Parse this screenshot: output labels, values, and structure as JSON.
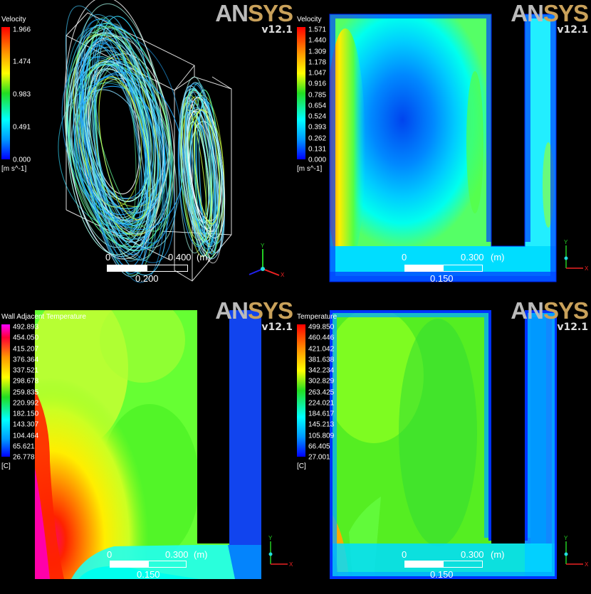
{
  "logo": {
    "name_left": "AN",
    "name_right": "SYS",
    "version": "v12.1"
  },
  "panels": [
    {
      "id": "velocity-streamlines",
      "legend_title": "Velocity",
      "ticks": [
        "1.966",
        "1.474",
        "0.983",
        "0.491",
        "0.000"
      ],
      "unit": "[m s^-1]",
      "scale": {
        "zero": "0",
        "max": "0.400",
        "unit": "(m)",
        "mid": "0.200"
      },
      "axes": {
        "y": "Y",
        "x": "X"
      }
    },
    {
      "id": "velocity-contour",
      "legend_title": "Velocity",
      "ticks": [
        "1.571",
        "1.440",
        "1.309",
        "1.178",
        "1.047",
        "0.916",
        "0.785",
        "0.654",
        "0.524",
        "0.393",
        "0.262",
        "0.131",
        "0.000"
      ],
      "unit": "[m s^-1]",
      "scale": {
        "zero": "0",
        "max": "0.300",
        "unit": "(m)",
        "mid": "0.150"
      },
      "axes": {
        "y": "Y",
        "x": "X"
      }
    },
    {
      "id": "wall-adjacent-temperature",
      "legend_title": "Wall Adjacent Temperature",
      "ticks": [
        "492.893",
        "454.050",
        "415.207",
        "376.364",
        "337.521",
        "298.678",
        "259.835",
        "220.992",
        "182.150",
        "143.307",
        "104.464",
        "65.621",
        "26.778"
      ],
      "unit": "[C]",
      "scale": {
        "zero": "0",
        "max": "0.300",
        "unit": "(m)",
        "mid": "0.150"
      },
      "axes": {
        "y": "Y",
        "x": "X"
      }
    },
    {
      "id": "temperature-contour",
      "legend_title": "Temperature",
      "ticks": [
        "499.850",
        "460.446",
        "421.042",
        "381.638",
        "342.234",
        "302.829",
        "263.425",
        "224.021",
        "184.617",
        "145.213",
        "105.809",
        "66.405",
        "27.001"
      ],
      "unit": "[C]",
      "scale": {
        "zero": "0",
        "max": "0.300",
        "unit": "(m)",
        "mid": "0.150"
      },
      "axes": {
        "y": "Y",
        "x": "X"
      }
    }
  ]
}
